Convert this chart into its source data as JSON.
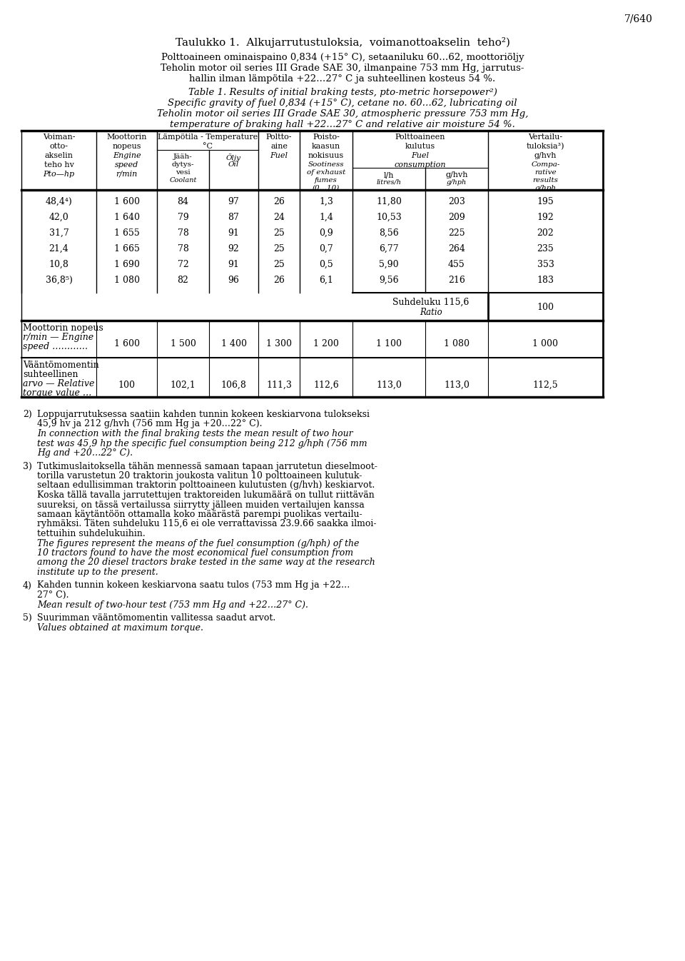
{
  "page_num": "7/640",
  "title_fi": "Taulukko 1.  Alkujarrutustuloksia,  voimanottoakselin  teho²)",
  "desc_fi_1": "Polttoaineen ominaispaino 0,834 (+15° C), setaaniluku 60…62, moottoriöljy",
  "desc_fi_2": "Teholin motor oil series III Grade SAE 30, ilmanpaine 753 mm Hg, jarrutus-",
  "desc_fi_3": "hallin ilman lämpötila +22…27° C ja suhteellinen kosteus 54 %.",
  "title_en": "Table 1. Results of initial braking tests, pto-metric horsepower²)",
  "desc_en_1": "Specific gravity of fuel 0,834 (+15° C), cetane no. 60…62, lubricating oil",
  "desc_en_2": "Teholin motor oil series III Grade SAE 30, atmospheric pressure 753 mm Hg,",
  "desc_en_3": "temperature of braking hall +22…27° C and relative air moisture 54 %.",
  "data_rows": [
    [
      "48,4⁴)",
      "1 600",
      "84",
      "97",
      "26",
      "1,3",
      "11,80",
      "203",
      "195"
    ],
    [
      "42,0",
      "1 640",
      "79",
      "87",
      "24",
      "1,4",
      "10,53",
      "209",
      "192"
    ],
    [
      "31,7",
      "1 655",
      "78",
      "91",
      "25",
      "0,9",
      "8,56",
      "225",
      "202"
    ],
    [
      "21,4",
      "1 665",
      "78",
      "92",
      "25",
      "0,7",
      "6,77",
      "264",
      "235"
    ],
    [
      "10,8",
      "1 690",
      "72",
      "91",
      "25",
      "0,5",
      "5,90",
      "455",
      "353"
    ],
    [
      "36,8⁵)",
      "1 080",
      "82",
      "96",
      "26",
      "6,1",
      "9,56",
      "216",
      "183"
    ]
  ],
  "ratio_fi": "Suhdeluku",
  "ratio_en": "Ratio",
  "ratio_val": "115,6",
  "ratio_comp": "100",
  "speed_label1": "Moottorin nopeus",
  "speed_label2": "r/min — Engine",
  "speed_label3": "speed …………",
  "speed_vals": [
    "1 600",
    "1 500",
    "1 400",
    "1 300",
    "1 200",
    "1 100",
    "1 080",
    "1 000"
  ],
  "torque_label1": "Vääntömomentin",
  "torque_label2": "suhteellinen",
  "torque_label3": "arvo — Relative",
  "torque_label4": "torque value …",
  "torque_vals": [
    "100",
    "102,1",
    "106,8",
    "111,3",
    "112,6",
    "113,0",
    "113,0",
    "112,5"
  ],
  "fn2_fi1": "Loppujarrutuksessa saatiin kahden tunnin kokeen keskiarvona tulokseksi",
  "fn2_fi2": "45,9 hv ja 212 g/hvh (756 mm Hg ja +20…22° C).",
  "fn2_en1": "In connection with the final braking tests the mean result of two hour",
  "fn2_en2": "test was 45,9 hp the specific fuel consumption being 212 g/hph (756 mm",
  "fn2_en3": "Hg and +20…22° C).",
  "fn3_fi1": "Tutkimuslaitoksella tähän mennessä samaan tapaan jarrutetun dieselmoot-",
  "fn3_fi2": "torilla varustetun 20 traktorin joukosta valitun 10 polttoaineen kulutuk-",
  "fn3_fi3": "seltaan edullisimman traktorin polttoaineen kulutusten (g/hvh) keskiarvot.",
  "fn3_fi4": "Koska tällä tavalla jarrutettujen traktoreiden lukumäärä on tullut riittävän",
  "fn3_fi5": "suureksi, on tässä vertailussa siirrytty jälleen muiden vertailujen kanssa",
  "fn3_fi6": "samaan käytäntöön ottamalla koko määrästä parempi puolikas vertailu-",
  "fn3_fi7": "ryhmäksi. Täten suhdeluku 115,6 ei ole verrattavissa 23.9.66 saakka ilmoi-",
  "fn3_fi8": "tettuihin suhdelukuihin.",
  "fn3_en1": "The figures represent the means of the fuel consumption (g/hph) of the",
  "fn3_en2": "10 tractors found to have the most economical fuel consumption from",
  "fn3_en3": "among the 20 diesel tractors brake tested in the same way at the research",
  "fn3_en4": "institute up to the present.",
  "fn4_fi1": "Kahden tunnin kokeen keskiarvona saatu tulos (753 mm Hg ja +22…",
  "fn4_fi2": "27° C).",
  "fn4_en1": "Mean result of two-hour test (753 mm Hg and +22…27° C).",
  "fn5_fi1": "Suurimman vääntömomentin vallitessa saadut arvot.",
  "fn5_en1": "Values obtained at maximum torque."
}
